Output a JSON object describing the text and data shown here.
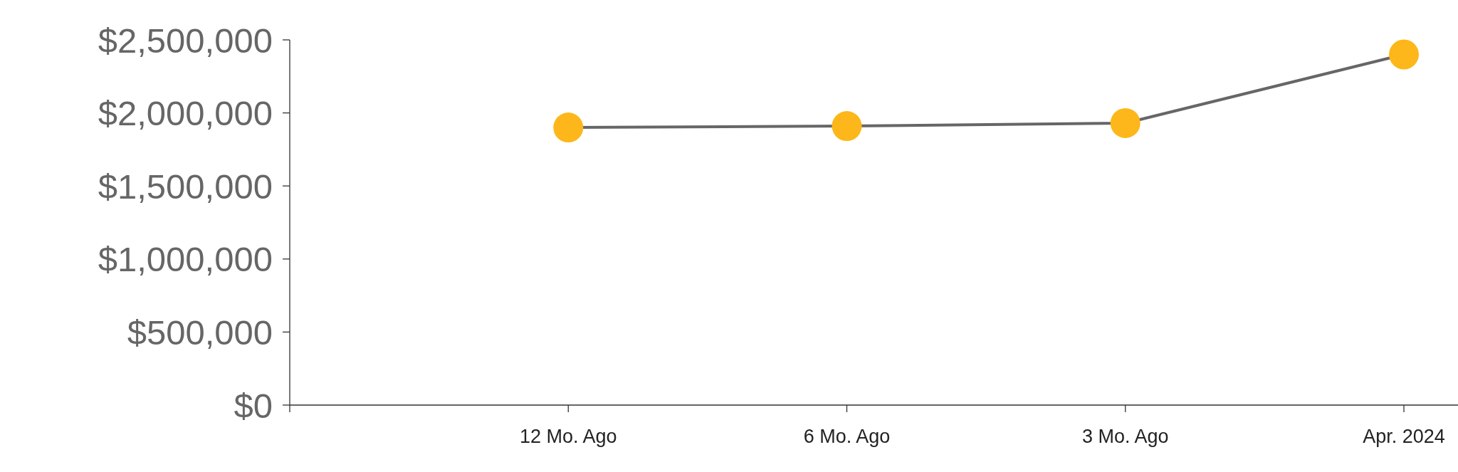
{
  "chart_data": {
    "type": "line",
    "categories": [
      null,
      "12 Mo. Ago",
      "6 Mo. Ago",
      "3 Mo. Ago",
      "Apr. 2024"
    ],
    "series": [
      {
        "color": "#666666",
        "colors": [
          null,
          "#fdb71a",
          "#fdb71a",
          "#fdb71a",
          "#fdb71a"
        ],
        "values": [
          null,
          1900000,
          1910000,
          1930000,
          2400000
        ]
      }
    ],
    "marker": "circle",
    "line_style": "solid",
    "ylim": [
      0,
      2500000
    ],
    "yticks": [
      {
        "value": 0,
        "label": "$0"
      },
      {
        "value": 500000,
        "label": "$500,000"
      },
      {
        "value": 1000000,
        "label": "$1,000,000"
      },
      {
        "value": 1500000,
        "label": "$1,500,000"
      },
      {
        "value": 2000000,
        "label": "$2,000,000"
      },
      {
        "value": 2500000,
        "label": "$2,500,000"
      }
    ],
    "grid": false
  }
}
